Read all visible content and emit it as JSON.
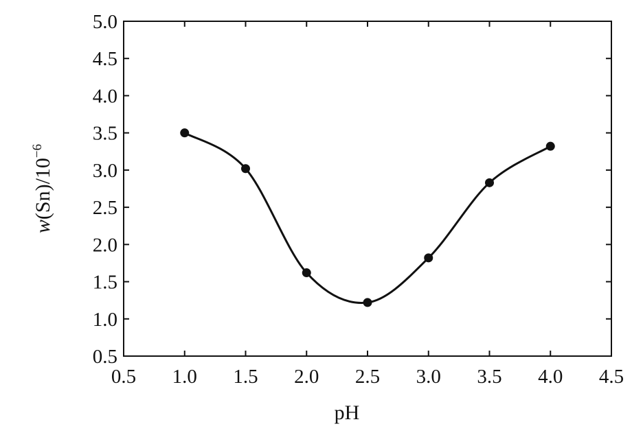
{
  "chart_data": {
    "type": "line",
    "title": "",
    "xlabel": "pH",
    "ylabel_parts": {
      "var": "w",
      "main": "(Sn)/10",
      "sup": "−6"
    },
    "x": [
      1.0,
      1.5,
      2.0,
      2.5,
      3.0,
      3.5,
      4.0
    ],
    "series": [
      {
        "values": [
          3.5,
          3.02,
          1.62,
          1.22,
          1.82,
          2.83,
          3.32
        ]
      }
    ],
    "xlim": [
      0.5,
      4.5
    ],
    "ylim": [
      0.5,
      5.0
    ],
    "xticks": [
      "0.5",
      "1.0",
      "1.5",
      "2.0",
      "2.5",
      "3.0",
      "3.5",
      "4.0",
      "4.5"
    ],
    "yticks": [
      "0.5",
      "1.0",
      "1.5",
      "2.0",
      "2.5",
      "3.0",
      "3.5",
      "4.0",
      "4.5",
      "5.0"
    ],
    "grid": false,
    "smooth": true,
    "line_color": "#111111",
    "marker": "filled-circle"
  }
}
